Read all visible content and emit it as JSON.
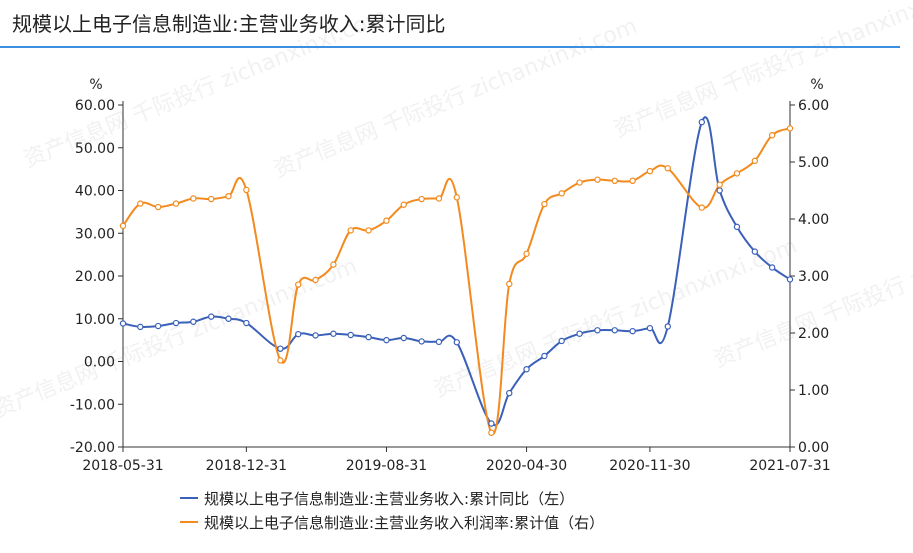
{
  "title": "规模以上电子信息制造业:主营业务收入:累计同比",
  "watermark": "资产信息网 千际投行 zichanxinxi.com",
  "colors": {
    "series_left": "#3a60b8",
    "series_right": "#f28a1e",
    "title_rule": "#3a8fe0"
  },
  "chart_data": {
    "type": "line",
    "x_ticks": [
      "2018-05-31",
      "2018-12-31",
      "2019-08-31",
      "2020-04-30",
      "2020-11-30",
      "2021-07-31"
    ],
    "y_left": {
      "unit": "%",
      "range": [
        -20,
        60
      ],
      "ticks": [
        "60.00",
        "50.00",
        "40.00",
        "30.00",
        "20.00",
        "10.00",
        "0.00",
        "-10.00",
        "-20.00"
      ]
    },
    "y_right": {
      "unit": "%",
      "range": [
        0,
        6
      ],
      "ticks": [
        "6.00",
        "5.00",
        "4.00",
        "3.00",
        "2.00",
        "1.00",
        "0.00"
      ]
    },
    "grid": false,
    "legend_position": "bottom",
    "series": [
      {
        "name": "规模以上电子信息制造业:主营业务收入:累计同比（左）",
        "axis": "left",
        "x": [
          "2018-05-31",
          "2018-06-30",
          "2018-07-31",
          "2018-08-31",
          "2018-09-30",
          "2018-10-31",
          "2018-11-30",
          "2018-12-31",
          "2019-02-28",
          "2019-03-31",
          "2019-04-30",
          "2019-05-31",
          "2019-06-30",
          "2019-07-31",
          "2019-08-31",
          "2019-09-30",
          "2019-10-31",
          "2019-11-30",
          "2019-12-31",
          "2020-02-29",
          "2020-03-31",
          "2020-04-30",
          "2020-05-31",
          "2020-06-30",
          "2020-07-31",
          "2020-08-31",
          "2020-09-30",
          "2020-10-31",
          "2020-11-30",
          "2020-12-31",
          "2021-02-28",
          "2021-03-31",
          "2021-04-30",
          "2021-05-31",
          "2021-06-30",
          "2021-07-31"
        ],
        "values": [
          8.9,
          8.1,
          8.3,
          9.0,
          9.3,
          10.5,
          10.0,
          9.0,
          3.0,
          6.4,
          6.1,
          6.5,
          6.2,
          5.7,
          5.0,
          5.5,
          4.7,
          4.6,
          4.5,
          -14.5,
          -7.4,
          -1.8,
          1.3,
          4.8,
          6.5,
          7.3,
          7.3,
          7.1,
          7.8,
          8.2,
          56.0,
          40.0,
          31.5,
          25.7,
          22.0,
          19.2
        ]
      },
      {
        "name": "规模以上电子信息制造业:主营业务收入利润率:累计值（右）",
        "axis": "right",
        "x": [
          "2018-05-31",
          "2018-06-30",
          "2018-07-31",
          "2018-08-31",
          "2018-09-30",
          "2018-10-31",
          "2018-11-30",
          "2018-12-31",
          "2019-02-28",
          "2019-03-31",
          "2019-04-30",
          "2019-05-31",
          "2019-06-30",
          "2019-07-31",
          "2019-08-31",
          "2019-09-30",
          "2019-10-31",
          "2019-11-30",
          "2019-12-31",
          "2020-02-29",
          "2020-03-31",
          "2020-04-30",
          "2020-05-31",
          "2020-06-30",
          "2020-07-31",
          "2020-08-31",
          "2020-09-30",
          "2020-10-31",
          "2020-11-30",
          "2020-12-31",
          "2021-02-28",
          "2021-03-31",
          "2021-04-30",
          "2021-05-31",
          "2021-06-30",
          "2021-07-31"
        ],
        "values": [
          3.88,
          4.27,
          4.21,
          4.27,
          4.36,
          4.35,
          4.4,
          4.51,
          1.52,
          2.85,
          2.93,
          3.2,
          3.8,
          3.8,
          3.97,
          4.25,
          4.35,
          4.36,
          4.38,
          0.25,
          2.86,
          3.39,
          4.26,
          4.45,
          4.64,
          4.69,
          4.67,
          4.67,
          4.84,
          4.89,
          4.2,
          4.6,
          4.8,
          5.02,
          5.47,
          5.59
        ]
      }
    ]
  }
}
